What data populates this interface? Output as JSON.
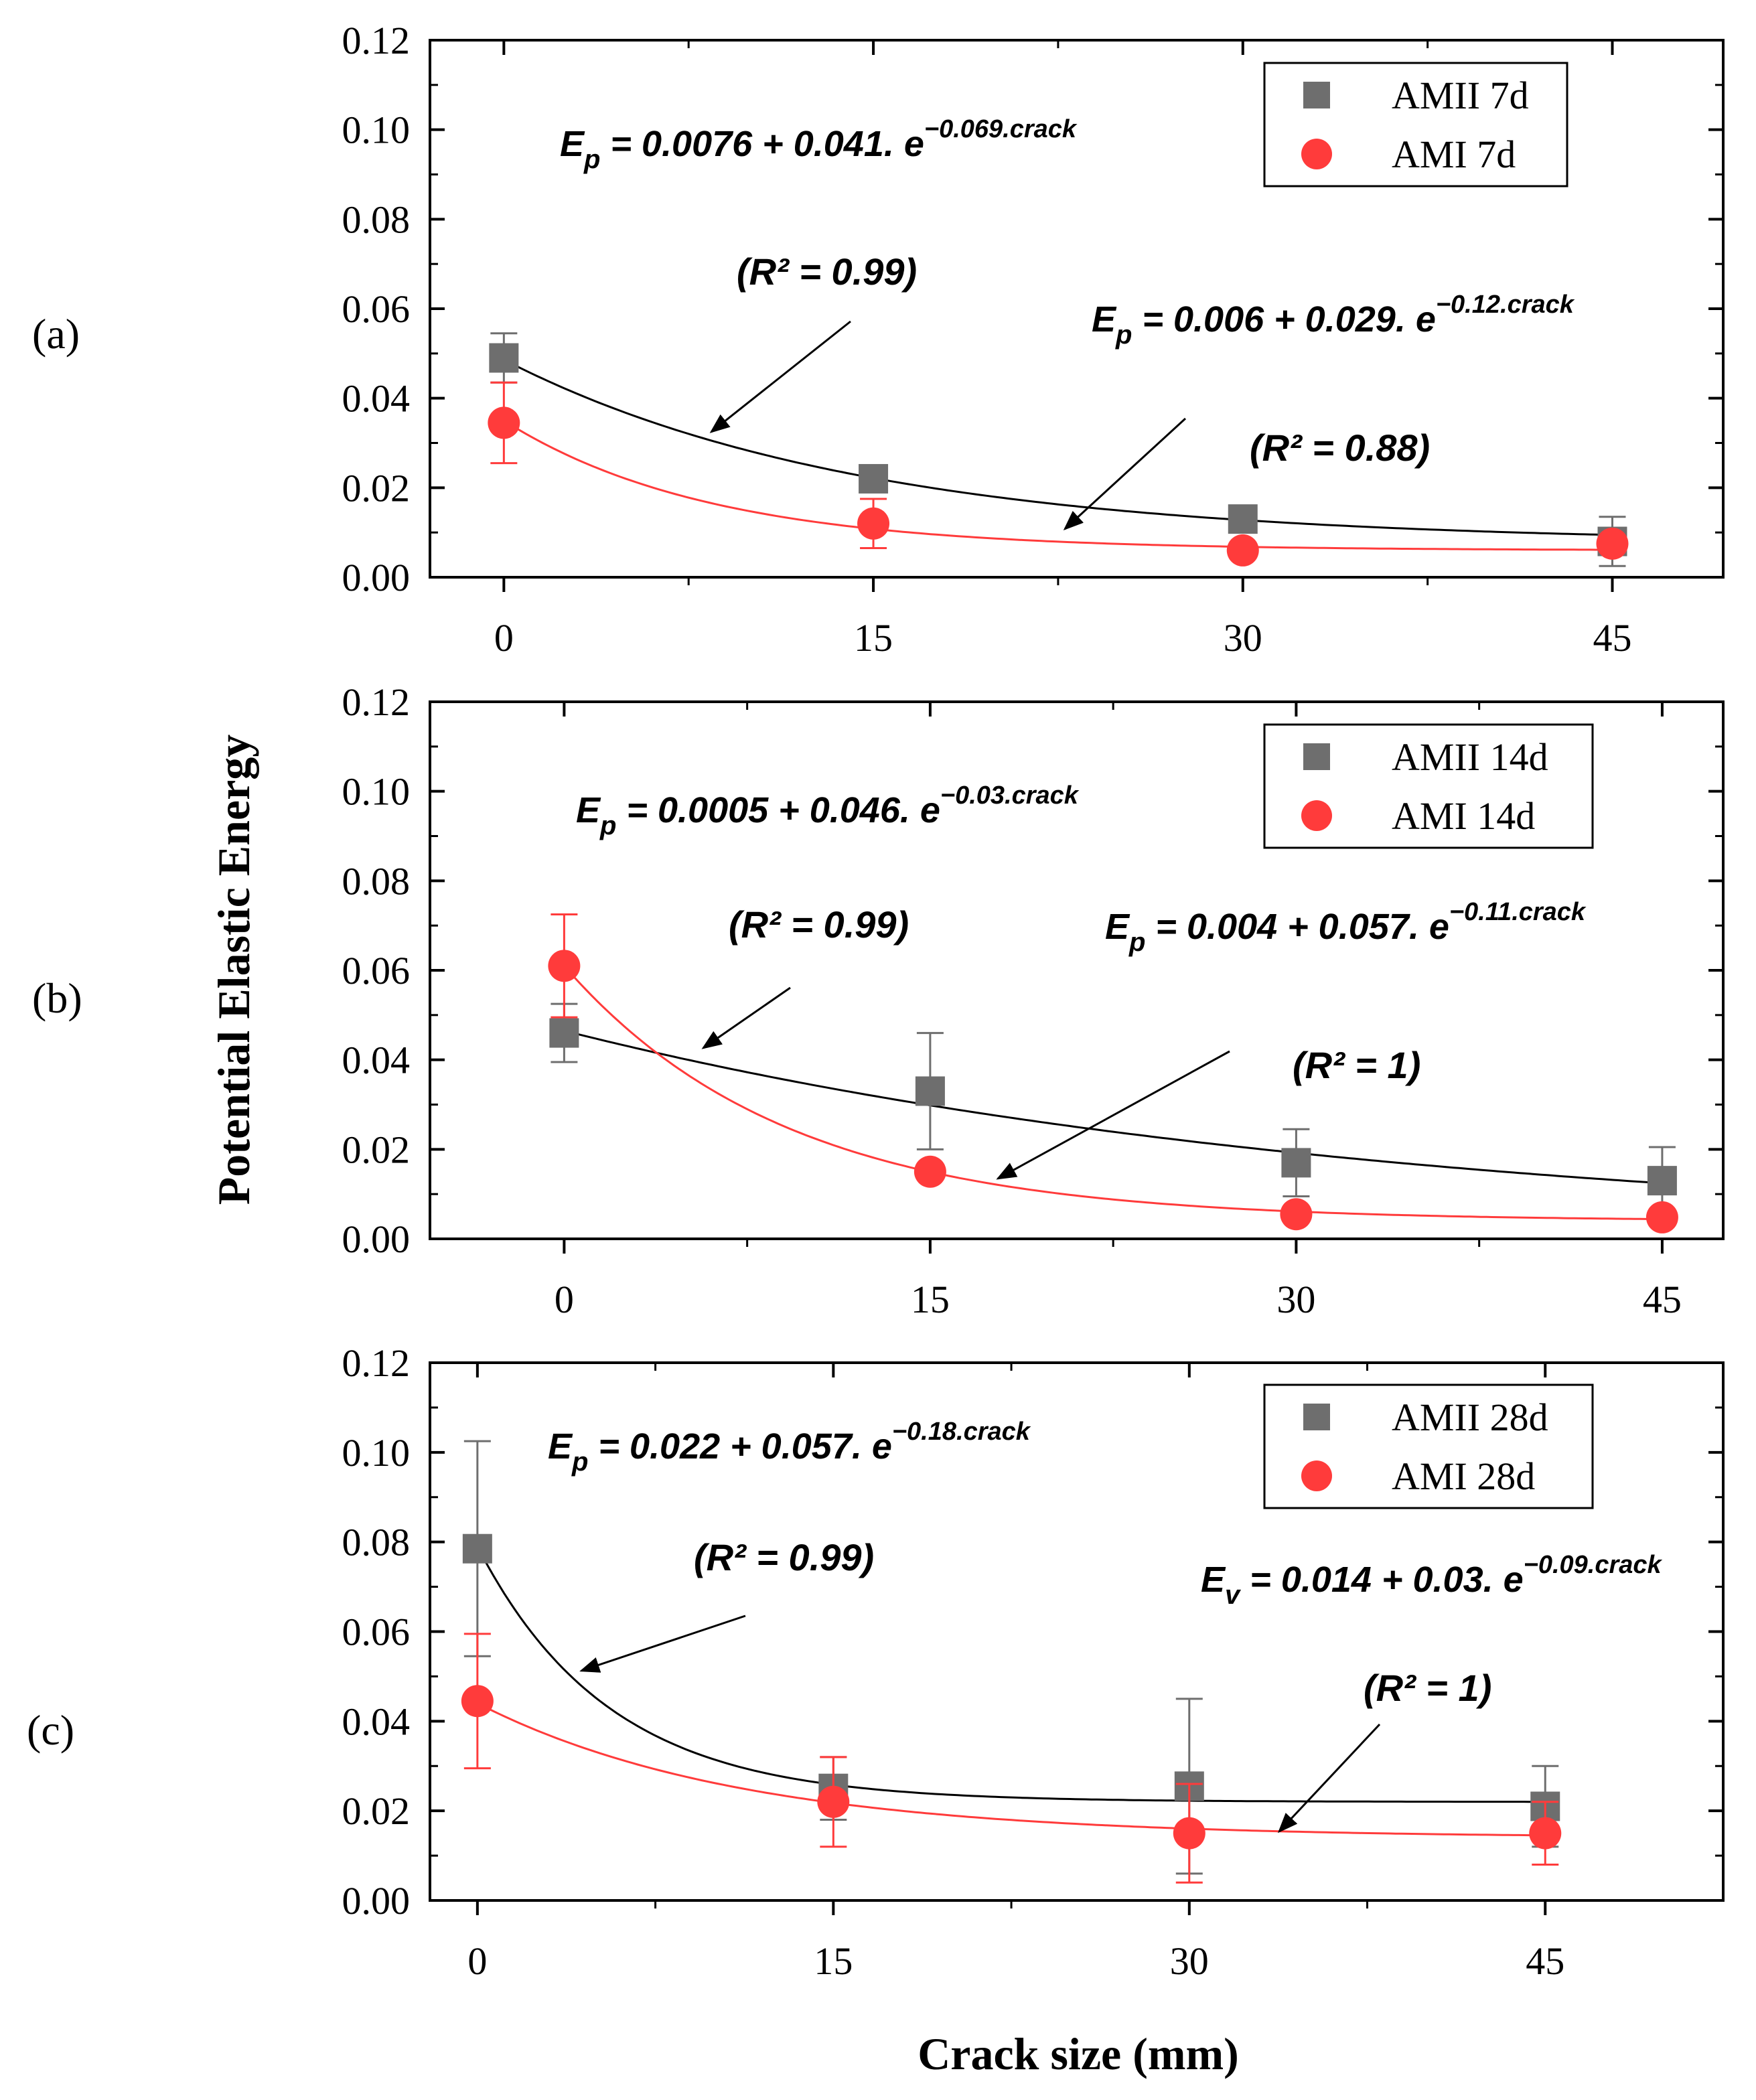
{
  "figure": {
    "y_axis_label": "Potential Elastic Energy",
    "x_axis_label": "Crack size (mm)"
  },
  "chart_data": [
    {
      "type": "scatter",
      "panel_label": "(a)",
      "xlabel": "Crack size (mm)",
      "ylabel": "Potential Elastic Energy",
      "xlim": [
        -3,
        49.5
      ],
      "ylim": [
        0,
        0.12
      ],
      "x_ticks": [
        "0",
        "15",
        "30",
        "45"
      ],
      "y_ticks": [
        "0.00",
        "0.02",
        "0.04",
        "0.06",
        "0.08",
        "0.10",
        "0.12"
      ],
      "legend_position": "top-right",
      "series": [
        {
          "name": "AMII 7d",
          "marker": "square",
          "color": "#6e6e6e",
          "fit_color": "#000000",
          "x": [
            0,
            15,
            30,
            45
          ],
          "y": [
            0.049,
            0.022,
            0.013,
            0.008
          ],
          "err": [
            0.0055,
            0.0015,
            0.0012,
            0.0055
          ],
          "fit": {
            "a": 0.0076,
            "b": 0.041,
            "c": 0.069
          },
          "equation": {
            "lhs": "E",
            "sub": "p",
            "rhs": " = 0.0076 + 0.041. e",
            "exp": "−0.069.crack"
          },
          "r2_text": "(R² = 0.99)"
        },
        {
          "name": "AMI 7d",
          "marker": "circle",
          "color": "#ff3b3b",
          "fit_color": "#ff3b3b",
          "x": [
            0,
            15,
            30,
            45
          ],
          "y": [
            0.0345,
            0.012,
            0.006,
            0.0075
          ],
          "err": [
            0.009,
            0.0055,
            0.0015,
            0.0018
          ],
          "fit": {
            "a": 0.006,
            "b": 0.029,
            "c": 0.12
          },
          "equation": {
            "lhs": "E",
            "sub": "p",
            "rhs": " = 0.006 + 0.029. e",
            "exp": "−0.12.crack"
          },
          "r2_text": "(R² = 0.88)"
        }
      ]
    },
    {
      "type": "scatter",
      "panel_label": "(b)",
      "xlabel": "Crack size (mm)",
      "ylabel": "Potential Elastic Energy",
      "xlim": [
        -5.5,
        47.5
      ],
      "ylim": [
        0,
        0.12
      ],
      "x_ticks": [
        "0",
        "15",
        "30",
        "45"
      ],
      "y_ticks": [
        "0.00",
        "0.02",
        "0.04",
        "0.06",
        "0.08",
        "0.10",
        "0.12"
      ],
      "legend_position": "top-right",
      "series": [
        {
          "name": "AMII 14d",
          "marker": "square",
          "color": "#6e6e6e",
          "fit_color": "#000000",
          "x": [
            0,
            15,
            30,
            45
          ],
          "y": [
            0.046,
            0.033,
            0.017,
            0.013
          ],
          "err": [
            0.0065,
            0.013,
            0.0075,
            0.0075
          ],
          "fit": {
            "a": 0.0005,
            "b": 0.046,
            "c": 0.03
          },
          "equation": {
            "lhs": "E",
            "sub": "p",
            "rhs": " = 0.0005 + 0.046. e",
            "exp": "−0.03.crack"
          },
          "r2_text": "(R² = 0.99)"
        },
        {
          "name": "AMI 14d",
          "marker": "circle",
          "color": "#ff3b3b",
          "fit_color": "#ff3b3b",
          "x": [
            0,
            15,
            30,
            45
          ],
          "y": [
            0.061,
            0.015,
            0.0055,
            0.0048
          ],
          "err": [
            0.0115,
            0.0008,
            0.0008,
            0.0008
          ],
          "fit": {
            "a": 0.004,
            "b": 0.057,
            "c": 0.11
          },
          "equation": {
            "lhs": "E",
            "sub": "p",
            "rhs": " = 0.004 + 0.057. e",
            "exp": "−0.11.crack"
          },
          "r2_text": "(R² = 1)"
        }
      ]
    },
    {
      "type": "scatter",
      "panel_label": "(c)",
      "xlabel": "Crack size (mm)",
      "ylabel": "Potential Elastic Energy",
      "xlim": [
        -2,
        52.5
      ],
      "ylim": [
        0,
        0.12
      ],
      "x_ticks": [
        "0",
        "15",
        "30",
        "45"
      ],
      "y_ticks": [
        "0.00",
        "0.02",
        "0.04",
        "0.06",
        "0.08",
        "0.10",
        "0.12"
      ],
      "legend_position": "top-right",
      "series": [
        {
          "name": "AMII 28d",
          "marker": "square",
          "color": "#6e6e6e",
          "fit_color": "#000000",
          "x": [
            0,
            15,
            30,
            45
          ],
          "y": [
            0.0785,
            0.025,
            0.0255,
            0.021
          ],
          "err": [
            0.024,
            0.007,
            0.0195,
            0.009
          ],
          "fit": {
            "a": 0.022,
            "b": 0.057,
            "c": 0.18
          },
          "equation": {
            "lhs": "E",
            "sub": "p",
            "rhs": " = 0.022 + 0.057. e",
            "exp": "−0.18.crack"
          },
          "r2_text": "(R² = 0.99)"
        },
        {
          "name": "AMI 28d",
          "marker": "circle",
          "color": "#ff3b3b",
          "fit_color": "#ff3b3b",
          "x": [
            0,
            15,
            30,
            45
          ],
          "y": [
            0.0445,
            0.022,
            0.015,
            0.015
          ],
          "err": [
            0.015,
            0.01,
            0.011,
            0.007
          ],
          "fit": {
            "a": 0.014,
            "b": 0.03,
            "c": 0.09
          },
          "equation": {
            "lhs": "E",
            "sub": "v",
            "rhs": " = 0.014 + 0.03. e",
            "exp": "−0.09.crack"
          },
          "r2_text": "(R² = 1)"
        }
      ]
    }
  ]
}
